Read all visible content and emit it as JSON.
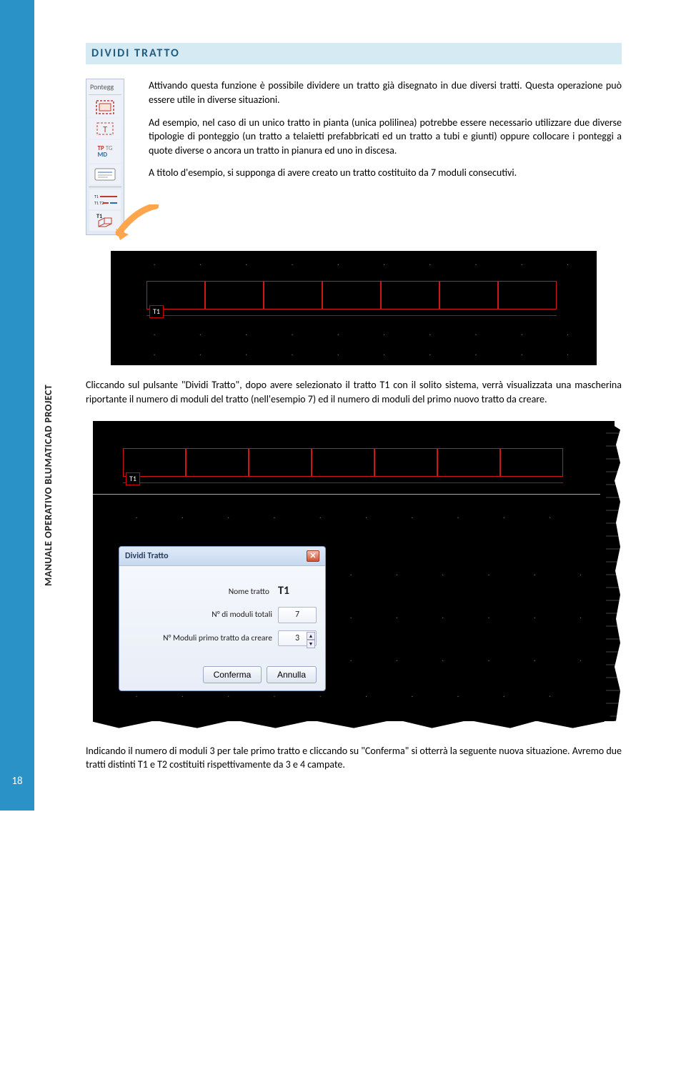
{
  "page_number": "18",
  "side_title": "MANUALE OPERATIVO BLUMATICAD PROJECT",
  "section_title": "DIVIDI TRATTO",
  "para1": "Attivando questa funzione è possibile dividere un tratto già disegnato in due diversi tratti. Questa operazione può essere utile in diverse situazioni.",
  "para2": "Ad esempio, nel caso di un unico tratto in pianta (unica polilinea) potrebbe essere necessario utilizzare due diverse tipologie di ponteggio (un tratto a telaietti prefabbricati ed un tratto a tubi e giunti) oppure collocare i ponteggi a quote diverse o ancora un tratto in pianura ed uno in discesa.",
  "para3": "A titolo d'esempio, si supponga di avere creato un tratto costituito da 7 moduli consecutivi.",
  "para4": "Cliccando sul pulsante \"Dividi Tratto\", dopo avere selezionato il tratto T1 con il solito sistema, verrà visualizzata una mascherina riportante il numero di moduli del tratto (nell'esempio 7) ed il numero di moduli del primo nuovo tratto da creare.",
  "para5": "Indicando il numero di moduli 3 per tale primo tratto e cliccando su \"Conferma\" si otterrà la seguente nuova situazione. Avremo due tratti distinti T1 e T2 costituiti rispettivamente da 3 e 4 campate.",
  "toolbar_title": "Pontegg",
  "toolbar": {
    "items": [
      "layout",
      "text",
      "tp-tg-md",
      "card",
      "split1",
      "split2",
      "t1"
    ]
  },
  "fig1": {
    "t_label": "T1",
    "modules": 7,
    "module_width": 82,
    "track_color": "#d01616",
    "bg": "#000000"
  },
  "fig2": {
    "t_label": "T1",
    "modules": 7,
    "module_width": 88,
    "track_color": "#d01616"
  },
  "dialog": {
    "title": "Dividi Tratto",
    "row_name_label": "Nome tratto",
    "row_name_value": "T1",
    "row_total_label": "N° di moduli totali",
    "row_total_value": "7",
    "row_first_label": "N° Moduli primo tratto da creare",
    "row_first_value": "3",
    "confirm": "Conferma",
    "cancel": "Annulla"
  }
}
